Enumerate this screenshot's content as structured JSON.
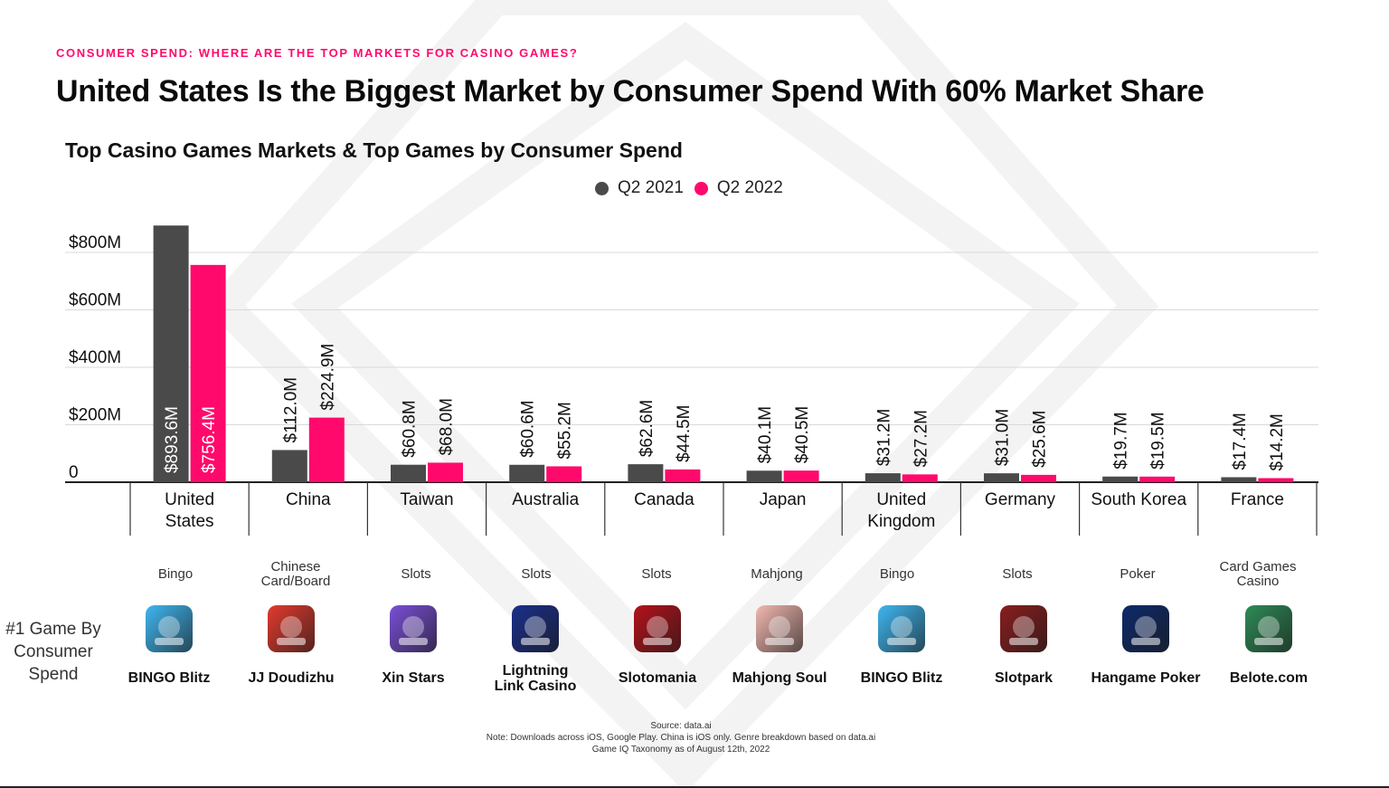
{
  "kicker": "CONSUMER SPEND: WHERE ARE THE TOP MARKETS FOR CASINO GAMES?",
  "headline": "United States Is the Biggest Market by Consumer Spend With 60% Market Share",
  "colors": {
    "accent": "#FF0A6C",
    "q2_2021": "#4A4A4A",
    "q2_2022": "#FF0A6C"
  },
  "chart_data": {
    "type": "bar",
    "title": "Top Casino Games Markets & Top Games by Consumer Spend",
    "xlabel": "",
    "ylabel": "",
    "ylim": [
      0,
      900
    ],
    "yticks": [
      0,
      200,
      400,
      600,
      800
    ],
    "ytick_labels": [
      "0",
      "$200M",
      "$400M",
      "$600M",
      "$800M"
    ],
    "grid": true,
    "legend_position": "top-center",
    "categories": [
      "United States",
      "China",
      "Taiwan",
      "Australia",
      "Canada",
      "Japan",
      "United Kingdom",
      "Germany",
      "South Korea",
      "France"
    ],
    "series": [
      {
        "name": "Q2 2021",
        "values": [
          893.6,
          112.0,
          60.8,
          60.6,
          62.6,
          40.1,
          31.2,
          31.0,
          19.7,
          17.4
        ],
        "labels": [
          "$893.6M",
          "$112.0M",
          "$60.8M",
          "$60.6M",
          "$62.6M",
          "$40.1M",
          "$31.2M",
          "$31.0M",
          "$19.7M",
          "$17.4M"
        ]
      },
      {
        "name": "Q2 2022",
        "values": [
          756.4,
          224.9,
          68.0,
          55.2,
          44.5,
          40.5,
          27.2,
          25.6,
          19.5,
          14.2
        ],
        "labels": [
          "$756.4M",
          "$224.9M",
          "$68.0M",
          "$55.2M",
          "$44.5M",
          "$40.5M",
          "$27.2M",
          "$25.6M",
          "$19.5M",
          "$14.2M"
        ]
      }
    ]
  },
  "top_games": {
    "row_label": "#1 Game By Consumer Spend",
    "items": [
      {
        "genre": "Bingo",
        "game": "BINGO Blitz",
        "icon": "bingo-blitz-icon",
        "icon_color": "#3FB6F0"
      },
      {
        "genre": "Chinese Card/Board",
        "game": "JJ Doudizhu",
        "icon": "jj-doudizhu-icon",
        "icon_color": "#E23A2E"
      },
      {
        "genre": "Slots",
        "game": "Xin Stars",
        "icon": "xin-stars-icon",
        "icon_color": "#7A4FD6"
      },
      {
        "genre": "Slots",
        "game": "Lightning Link Casino",
        "icon": "lightning-link-icon",
        "icon_color": "#1B2F8A"
      },
      {
        "genre": "Slots",
        "game": "Slotomania",
        "icon": "slotomania-icon",
        "icon_color": "#B5121B"
      },
      {
        "genre": "Mahjong",
        "game": "Mahjong Soul",
        "icon": "mahjong-soul-icon",
        "icon_color": "#F2B8B0"
      },
      {
        "genre": "Bingo",
        "game": "BINGO Blitz",
        "icon": "bingo-blitz-icon",
        "icon_color": "#3FB6F0"
      },
      {
        "genre": "Slots",
        "game": "Slotpark",
        "icon": "slotpark-icon",
        "icon_color": "#8A1E1E"
      },
      {
        "genre": "Poker",
        "game": "Hangame Poker",
        "icon": "hangame-poker-icon",
        "icon_color": "#0E2A6B"
      },
      {
        "genre": "Card Games Casino",
        "game": "Belote.com",
        "icon": "belote-icon",
        "icon_color": "#2E8B57"
      }
    ]
  },
  "footnote": {
    "source": "Source: data.ai",
    "note_line1": "Note: Downloads across iOS, Google Play. China is iOS only. Genre breakdown based on data.ai",
    "note_line2": "Game IQ Taxonomy as of August 12th, 2022"
  }
}
